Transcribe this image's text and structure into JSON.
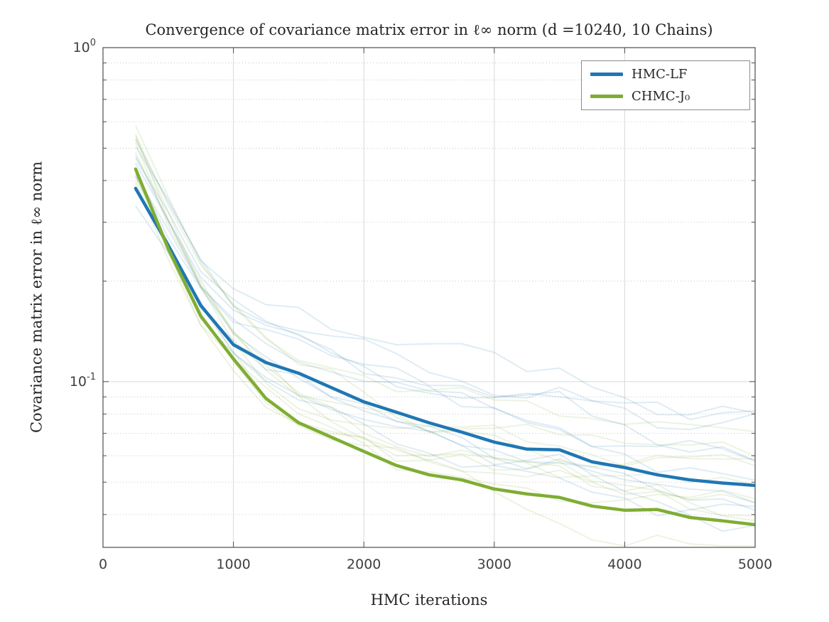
{
  "chart_data": {
    "type": "line",
    "title": "Convergence of covariance matrix error in ℓ∞ norm (d =10240, 10 Chains)",
    "xlabel": "HMC iterations",
    "ylabel": "Covariance matrix error in ℓ∞ norm",
    "y_scale": "log",
    "xlim": [
      0,
      5000
    ],
    "ylim": [
      0.0319,
      1.0
    ],
    "x_ticks": [
      0,
      1000,
      2000,
      3000,
      4000,
      5000
    ],
    "y_ticks": [
      {
        "value": 1.0,
        "base": "10",
        "exp": "0"
      },
      {
        "value": 0.1,
        "base": "10",
        "exp": "-1"
      }
    ],
    "grid": {
      "major": true,
      "minor": true
    },
    "legend_position": "top-right",
    "num_chains": 10,
    "chain_opacity": 0.14,
    "x": [
      250,
      500,
      750,
      1000,
      1250,
      1500,
      1750,
      2000,
      2250,
      2500,
      2750,
      3000,
      3250,
      3500,
      3750,
      4000,
      4250,
      4500,
      4750,
      5000
    ],
    "series": [
      {
        "name": "HMC-LF",
        "color": "#1f77b4",
        "values": [
          0.379,
          0.256,
          0.169,
          0.129,
          0.114,
          0.106,
          0.096,
          0.087,
          0.081,
          0.0753,
          0.0706,
          0.0659,
          0.0628,
          0.0625,
          0.0575,
          0.0553,
          0.0526,
          0.0508,
          0.0497,
          0.0489
        ]
      },
      {
        "name": "CHMC-J₀",
        "color": "#7fad33",
        "values": [
          0.433,
          0.25,
          0.157,
          0.117,
          0.089,
          0.0753,
          0.0682,
          0.0618,
          0.0561,
          0.0526,
          0.0508,
          0.0477,
          0.0461,
          0.045,
          0.0424,
          0.0412,
          0.0414,
          0.0392,
          0.0383,
          0.0373
        ]
      }
    ]
  },
  "legend": {
    "items": [
      {
        "label": "HMC-LF"
      },
      {
        "label": "CHMC-J₀"
      }
    ]
  }
}
